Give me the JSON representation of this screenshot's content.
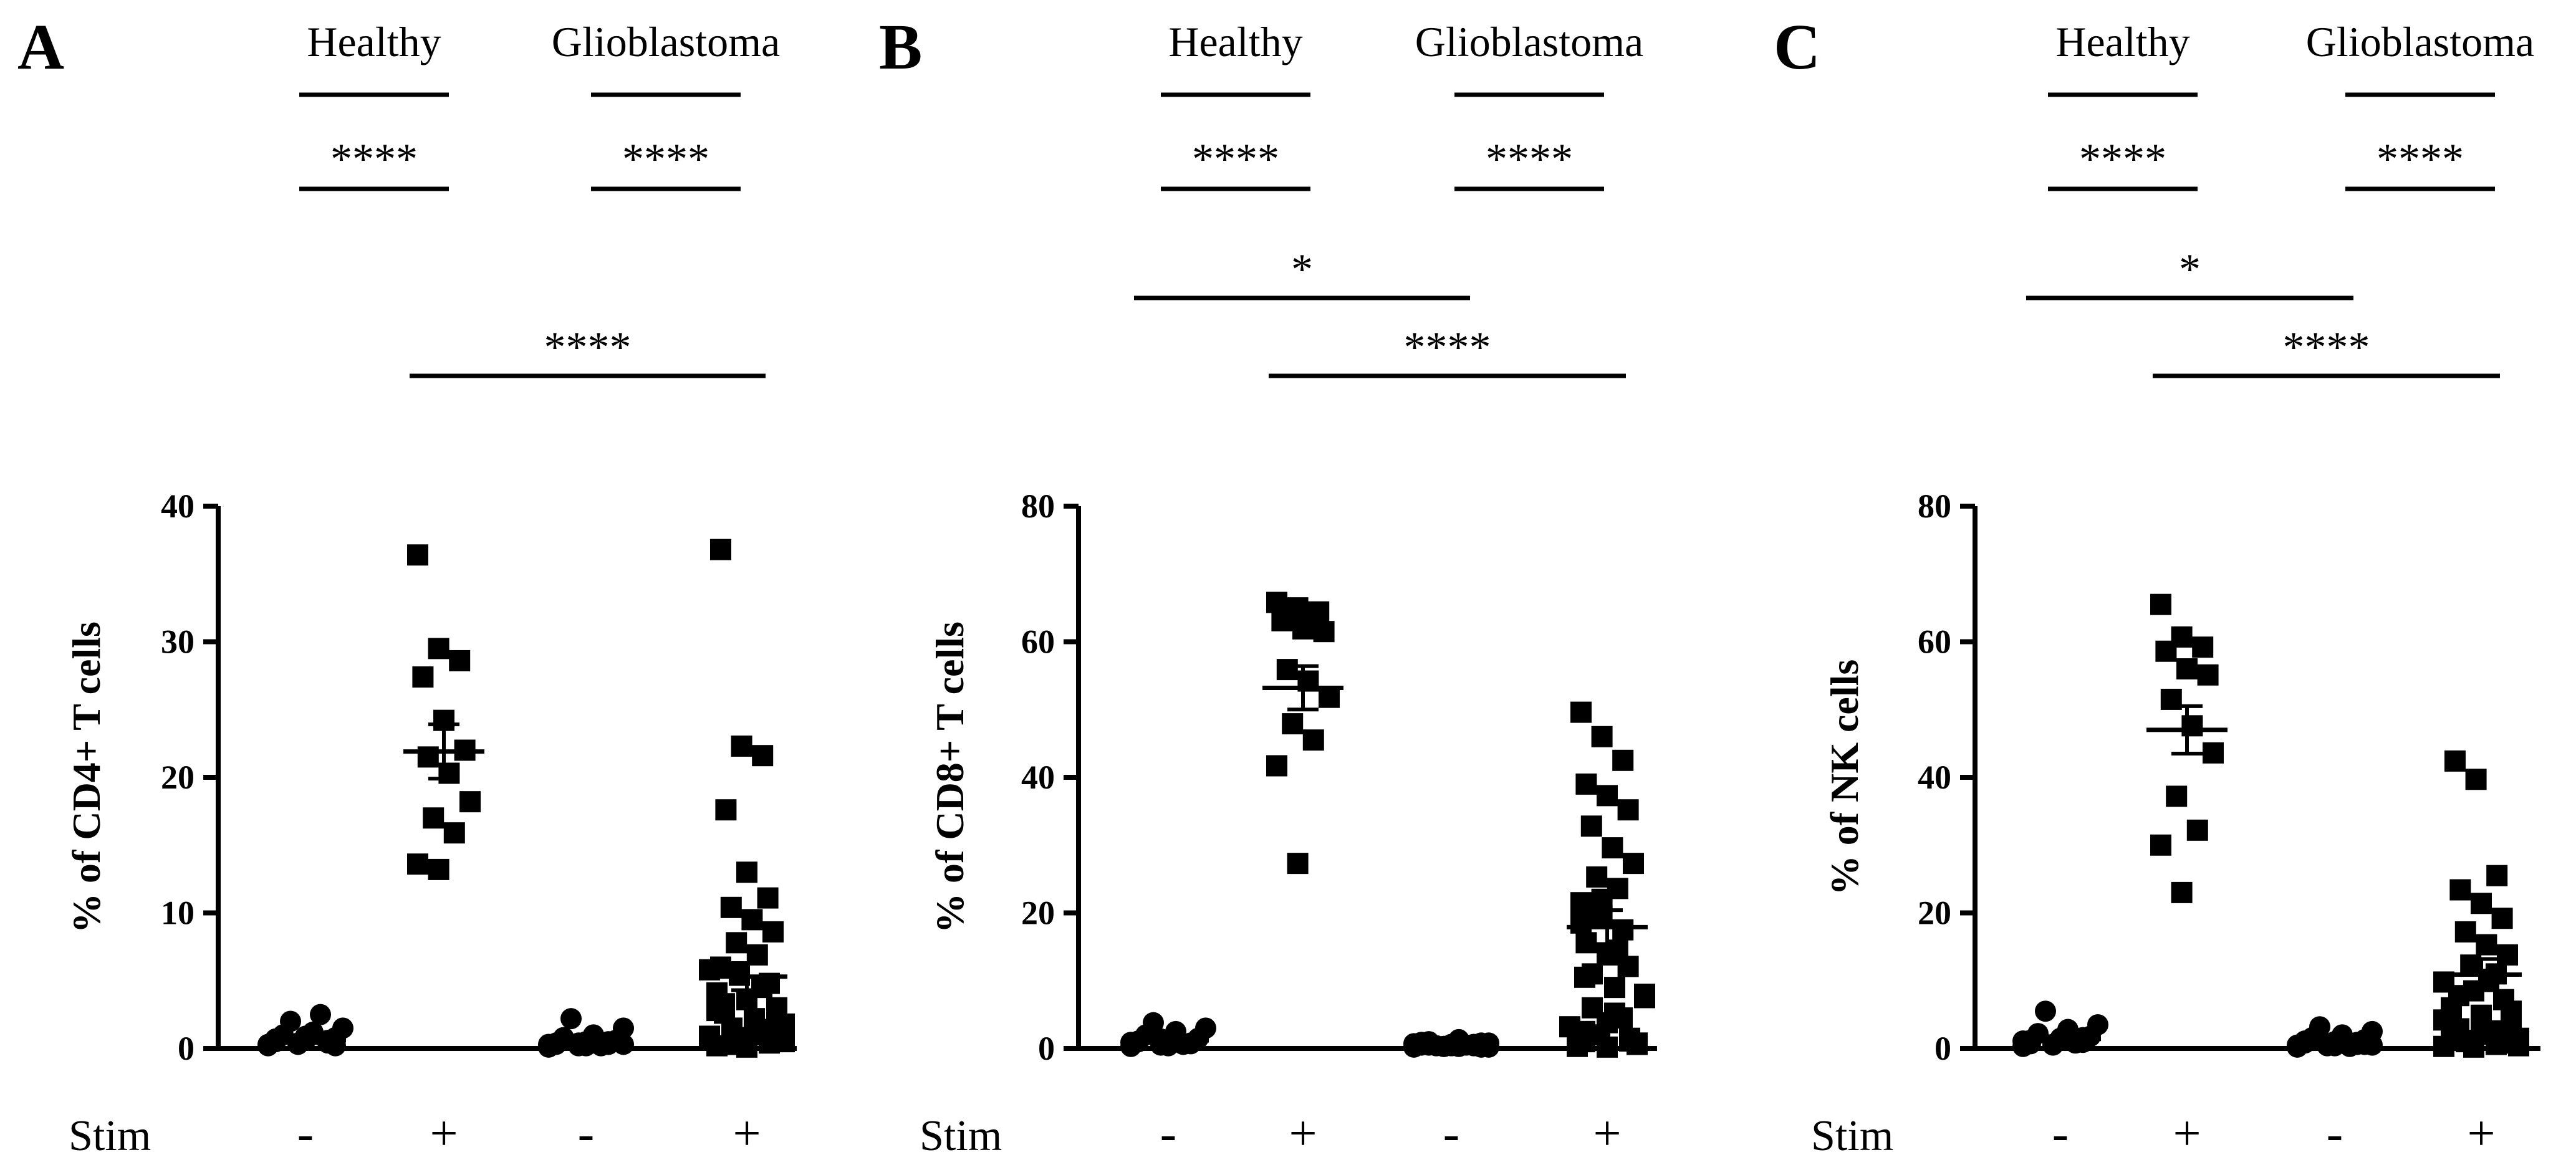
{
  "figure": {
    "stim_row_label": "Stim",
    "group_labels": [
      "Healthy",
      "Glioblastoma"
    ]
  },
  "chart_data": [
    {
      "type": "scatter",
      "panel": "A",
      "ylabel": "% of CD4+ T cells",
      "ylim": [
        0,
        40
      ],
      "yticks": [
        0,
        10,
        20,
        30,
        40
      ],
      "categories": [
        "-",
        "+",
        "-",
        "+"
      ],
      "groups": [
        "Healthy",
        "Healthy",
        "Glioblastoma",
        "Glioblastoma"
      ],
      "significance": [
        {
          "from": 0,
          "to": 1,
          "label": "****"
        },
        {
          "from": 2,
          "to": 3,
          "label": "****"
        },
        {
          "from": 1,
          "to": 3,
          "label": "****"
        }
      ],
      "series": [
        {
          "name": "Healthy -",
          "marker": "circle",
          "mean": 0.6,
          "sem": 0.2,
          "values": [
            0.2,
            0.3,
            0.4,
            0.5,
            0.6,
            0.8,
            1.0,
            1.2,
            1.5,
            2.0,
            2.5,
            0.3,
            0.4,
            0.6,
            0.7,
            0.9,
            0.2
          ]
        },
        {
          "name": "Healthy +",
          "marker": "square",
          "mean": 21.9,
          "sem": 2.0,
          "values": [
            36.4,
            29.5,
            28.6,
            27.4,
            24.2,
            22.0,
            21.5,
            20.3,
            18.2,
            17.0,
            15.9,
            13.6,
            13.2
          ]
        },
        {
          "name": "Glioblastoma -",
          "marker": "circle",
          "mean": 0.4,
          "sem": 0.1,
          "values": [
            0.1,
            0.2,
            0.3,
            0.4,
            0.5,
            0.6,
            0.8,
            1.0,
            1.5,
            2.2,
            0.2,
            0.3,
            0.4,
            0.5,
            0.3,
            0.2,
            0.6,
            0.7,
            0.4,
            0.3
          ]
        },
        {
          "name": "Glioblastoma +",
          "marker": "square",
          "mean": 5.3,
          "sem": 1.0,
          "values": [
            36.8,
            22.3,
            21.6,
            17.6,
            13.0,
            11.1,
            10.4,
            9.5,
            8.6,
            7.8,
            6.9,
            6.0,
            5.4,
            4.8,
            4.1,
            3.6,
            3.0,
            2.6,
            2.2,
            1.8,
            1.5,
            1.2,
            0.9,
            0.6,
            0.4,
            0.2,
            0.1,
            2.1,
            3.3,
            1.0,
            0.5,
            0.3,
            4.5,
            5.8,
            0.8,
            1.4,
            2.8,
            0.2
          ]
        }
      ]
    },
    {
      "type": "scatter",
      "panel": "B",
      "ylabel": "% of CD8+ T cells",
      "ylim": [
        0,
        80
      ],
      "yticks": [
        0,
        20,
        40,
        60,
        80
      ],
      "categories": [
        "-",
        "+",
        "-",
        "+"
      ],
      "groups": [
        "Healthy",
        "Healthy",
        "Glioblastoma",
        "Glioblastoma"
      ],
      "significance": [
        {
          "from": 0,
          "to": 1,
          "label": "****"
        },
        {
          "from": 2,
          "to": 3,
          "label": "****"
        },
        {
          "from": 0,
          "to": 2,
          "label": "*"
        },
        {
          "from": 1,
          "to": 3,
          "label": "****"
        }
      ],
      "series": [
        {
          "name": "Healthy -",
          "marker": "circle",
          "mean": 1.2,
          "sem": 0.3,
          "values": [
            0.3,
            0.5,
            0.8,
            1.0,
            1.2,
            1.5,
            2.0,
            2.5,
            3.0,
            3.8,
            0.6,
            0.9,
            1.4,
            0.7,
            1.1,
            0.4
          ]
        },
        {
          "name": "Healthy +",
          "marker": "square",
          "mean": 53.2,
          "sem": 3.2,
          "values": [
            65.8,
            65.0,
            64.4,
            63.1,
            61.9,
            61.5,
            55.9,
            54.2,
            51.8,
            47.9,
            45.5,
            41.7,
            27.3
          ]
        },
        {
          "name": "Glioblastoma -",
          "marker": "circle",
          "mean": 0.5,
          "sem": 0.1,
          "values": [
            0.2,
            0.3,
            0.4,
            0.5,
            0.6,
            0.8,
            1.0,
            1.3,
            0.2,
            0.4,
            0.5,
            0.7,
            0.3,
            0.6,
            0.9,
            0.4,
            0.2,
            0.5,
            0.3,
            0.8
          ]
        },
        {
          "name": "Glioblastoma +",
          "marker": "square",
          "mean": 17.9,
          "sem": 2.5,
          "values": [
            49.6,
            46.0,
            42.5,
            39.0,
            37.3,
            35.2,
            32.8,
            29.6,
            27.3,
            25.3,
            23.6,
            21.5,
            19.6,
            17.5,
            15.6,
            13.8,
            12.1,
            10.5,
            9.0,
            7.5,
            6.0,
            4.5,
            3.2,
            2.0,
            1.1,
            0.5,
            0.2,
            0.8,
            2.5,
            5.2,
            8.0,
            11.0,
            14.5,
            18.5,
            22.0,
            1.5,
            0.3,
            3.8,
            0.6,
            1.0
          ]
        }
      ]
    },
    {
      "type": "scatter",
      "panel": "C",
      "ylabel": "% of NK cells",
      "ylim": [
        0,
        80
      ],
      "yticks": [
        0,
        20,
        40,
        60,
        80
      ],
      "categories": [
        "-",
        "+",
        "-",
        "+"
      ],
      "groups": [
        "Healthy",
        "Healthy",
        "Glioblastoma",
        "Glioblastoma"
      ],
      "significance": [
        {
          "from": 0,
          "to": 1,
          "label": "****"
        },
        {
          "from": 2,
          "to": 3,
          "label": "****"
        },
        {
          "from": 0,
          "to": 2,
          "label": "*"
        },
        {
          "from": 1,
          "to": 3,
          "label": "****"
        }
      ],
      "series": [
        {
          "name": "Healthy -",
          "marker": "circle",
          "mean": 1.4,
          "sem": 0.4,
          "values": [
            0.3,
            0.6,
            0.9,
            1.2,
            1.5,
            1.8,
            2.2,
            2.8,
            3.5,
            5.5,
            0.8,
            1.1,
            0.5,
            1.6,
            0.7
          ]
        },
        {
          "name": "Healthy +",
          "marker": "square",
          "mean": 47.0,
          "sem": 3.5,
          "values": [
            65.5,
            60.7,
            59.2,
            58.6,
            56.0,
            55.1,
            51.5,
            47.6,
            43.6,
            37.2,
            32.2,
            30.0,
            23.0
          ]
        },
        {
          "name": "Glioblastoma -",
          "marker": "circle",
          "mean": 1.0,
          "sem": 0.2,
          "values": [
            0.2,
            0.4,
            0.6,
            0.8,
            1.0,
            1.3,
            1.6,
            2.0,
            2.5,
            3.2,
            0.3,
            0.5,
            0.7,
            0.9,
            1.1,
            0.4,
            0.6,
            1.4,
            0.8,
            0.5
          ]
        },
        {
          "name": "Glioblastoma +",
          "marker": "square",
          "mean": 10.9,
          "sem": 2.3,
          "values": [
            42.4,
            39.7,
            25.5,
            23.4,
            21.4,
            19.2,
            17.2,
            15.3,
            13.8,
            12.3,
            11.0,
            9.8,
            8.5,
            7.2,
            6.0,
            4.9,
            3.8,
            2.9,
            2.1,
            1.5,
            1.0,
            0.6,
            0.3,
            0.2,
            0.8,
            1.8,
            3.3,
            5.5,
            7.8,
            10.2,
            0.4,
            1.2,
            2.6,
            4.2,
            0.7
          ]
        }
      ]
    }
  ]
}
